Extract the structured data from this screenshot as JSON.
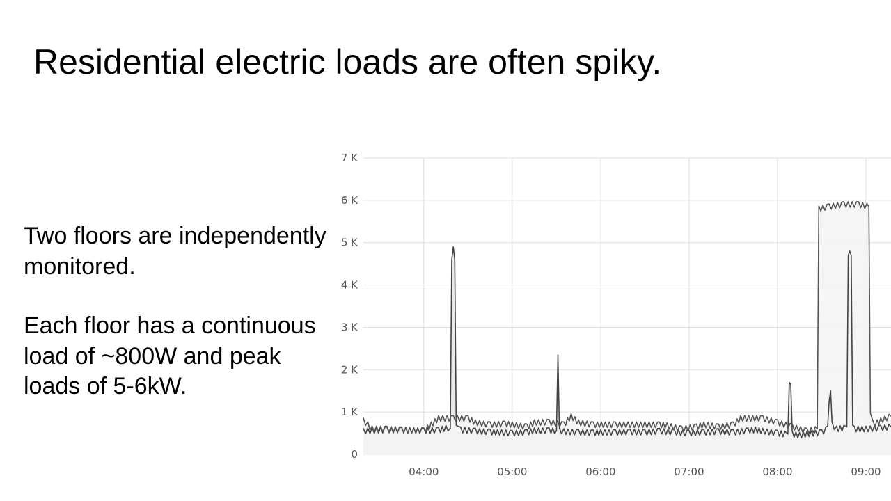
{
  "slide": {
    "title": "Residential electric loads are often spiky.",
    "paragraph1": "Two floors are independently monitored.",
    "paragraph2": "Each floor has a continuous load of ~800W and peak loads of 5-6kW."
  },
  "chart_data": {
    "type": "area",
    "title": "",
    "xlabel": "",
    "ylabel": "",
    "x_range": [
      "03:19",
      "09:17"
    ],
    "ylim": [
      0,
      7000
    ],
    "y_ticks": [
      {
        "value": 0,
        "label": "0"
      },
      {
        "value": 1000,
        "label": "1 K"
      },
      {
        "value": 2000,
        "label": "2 K"
      },
      {
        "value": 3000,
        "label": "3 K"
      },
      {
        "value": 4000,
        "label": "4 K"
      },
      {
        "value": 5000,
        "label": "5 K"
      },
      {
        "value": 6000,
        "label": "6 K"
      },
      {
        "value": 7000,
        "label": "7 K"
      }
    ],
    "x_ticks": [
      "04:00",
      "05:00",
      "06:00",
      "07:00",
      "08:00",
      "09:00"
    ],
    "grid": true,
    "legend": "none",
    "colors": {
      "line_a": "#444444",
      "line_b": "#555555",
      "area_a": "#e8e8e8",
      "area_b": "#f4f4f4",
      "grid": "#dddddd"
    },
    "series": [
      {
        "x": [
          "03:19",
          "03:25",
          "03:35",
          "03:45",
          "04:00",
          "04:10",
          "04:15",
          "04:18",
          "04:19",
          "04:20",
          "04:21",
          "04:22",
          "04:23",
          "04:25",
          "04:35",
          "04:45",
          "04:50",
          "05:00",
          "05:10",
          "05:15",
          "05:25",
          "05:30",
          "05:31",
          "05:32",
          "05:35",
          "05:45",
          "05:55",
          "06:00",
          "06:10",
          "06:20",
          "06:30",
          "06:40",
          "06:50",
          "07:00",
          "07:10",
          "07:20",
          "07:30",
          "07:40",
          "07:45",
          "07:50",
          "08:00",
          "08:05",
          "08:07",
          "08:08",
          "08:09",
          "08:10",
          "08:15",
          "08:20",
          "08:30",
          "08:34",
          "08:35",
          "08:36",
          "08:37",
          "08:40",
          "08:45",
          "08:47",
          "08:48",
          "08:49",
          "08:50",
          "08:51",
          "08:52",
          "09:00",
          "09:10",
          "09:17"
        ],
        "y": [
          550,
          560,
          580,
          570,
          560,
          570,
          620,
          620,
          4600,
          4900,
          4600,
          620,
          600,
          580,
          550,
          530,
          520,
          500,
          520,
          560,
          560,
          560,
          2350,
          560,
          540,
          520,
          510,
          520,
          520,
          530,
          520,
          550,
          520,
          500,
          520,
          540,
          520,
          560,
          580,
          550,
          500,
          480,
          480,
          1700,
          1650,
          480,
          450,
          480,
          520,
          600,
          1250,
          1500,
          700,
          600,
          620,
          650,
          4700,
          4800,
          4700,
          620,
          600,
          600,
          620,
          650
        ]
      },
      {
        "x": [
          "03:19",
          "03:25",
          "03:35",
          "03:45",
          "04:00",
          "04:05",
          "04:10",
          "04:20",
          "04:30",
          "04:35",
          "04:45",
          "04:55",
          "05:00",
          "05:10",
          "05:15",
          "05:25",
          "05:35",
          "05:40",
          "05:45",
          "05:55",
          "06:10",
          "06:30",
          "06:40",
          "06:45",
          "06:55",
          "07:05",
          "07:10",
          "07:20",
          "07:30",
          "07:35",
          "07:50",
          "08:00",
          "08:10",
          "08:20",
          "08:27",
          "08:28",
          "08:35",
          "08:45",
          "08:55",
          "09:02",
          "09:03",
          "09:05",
          "09:10",
          "09:17"
        ],
        "y": [
          800,
          600,
          600,
          580,
          560,
          700,
          850,
          850,
          850,
          750,
          700,
          720,
          700,
          650,
          750,
          760,
          700,
          900,
          750,
          700,
          700,
          700,
          700,
          680,
          600,
          650,
          700,
          650,
          700,
          850,
          850,
          750,
          650,
          550,
          600,
          5800,
          5850,
          5900,
          5900,
          5850,
          900,
          700,
          800,
          900
        ]
      }
    ]
  }
}
